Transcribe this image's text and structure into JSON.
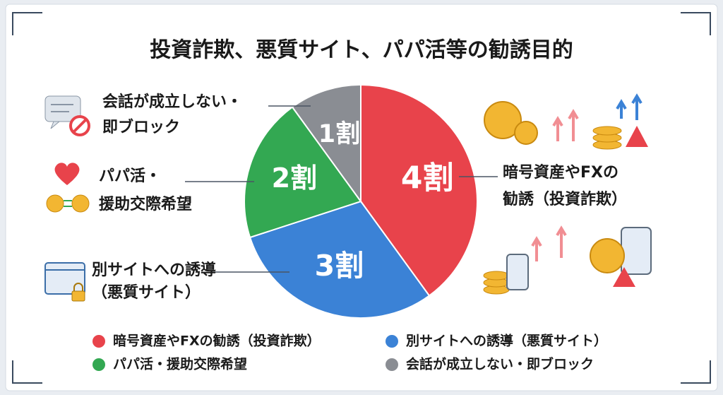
{
  "chart_data": {
    "type": "pie",
    "title": "投資詐欺、悪質サイト、パパ活等の勧誘目的",
    "categories": [
      "暗号資産やFXの勧誘（投資詐欺）",
      "別サイトへの誘導（悪質サイト）",
      "パパ活・援助交際希望",
      "会話が成立しない・即ブロック"
    ],
    "values": [
      4,
      3,
      2,
      1
    ],
    "value_labels": [
      "4割",
      "3割",
      "2割",
      "1割"
    ],
    "colors": [
      "#e8434b",
      "#3b82d6",
      "#33a852",
      "#8a8d93"
    ],
    "callouts": [
      [
        "暗号資産やFXの",
        "勧誘（投資詐欺）"
      ],
      [
        "別サイトへの誘導",
        "（悪質サイト）"
      ],
      [
        "パパ活・",
        "援助交際希望"
      ],
      [
        "会話が成立しない・",
        "即ブロック"
      ]
    ]
  }
}
